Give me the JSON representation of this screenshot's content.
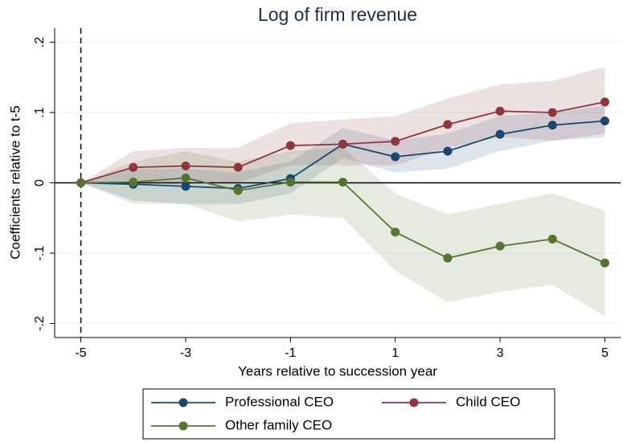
{
  "chart_data": {
    "type": "line",
    "title": "Log of firm revenue",
    "x_label": "Years relative to succession year",
    "y_label": "Coefficients relative to t-5",
    "x": [
      -5,
      -4,
      -3,
      -2,
      -1,
      0,
      1,
      2,
      3,
      4,
      5
    ],
    "xlim": [
      -5.5,
      5.3
    ],
    "xticks": [
      -5,
      -3,
      -1,
      1,
      3,
      5
    ],
    "ylim": [
      -0.22,
      0.22
    ],
    "yticks": [
      {
        "value": 0.2,
        "label": ".2"
      },
      {
        "value": 0.1,
        "label": ".1"
      },
      0,
      {
        "value": -0.1,
        "label": "-.1"
      },
      {
        "value": -0.2,
        "label": "-.2"
      }
    ],
    "grid": true,
    "xline": -5,
    "yline": 0,
    "legend": "bottom",
    "series": [
      {
        "name": "Professional CEO",
        "color": "#1a476f",
        "values": [
          0,
          -0.002,
          -0.005,
          -0.008,
          0.006,
          0.055,
          0.037,
          0.045,
          0.069,
          0.082,
          0.088
        ],
        "upper": [
          0,
          0.02,
          0.02,
          0.015,
          0.03,
          0.078,
          0.06,
          0.07,
          0.095,
          0.1,
          0.11
        ],
        "lower": [
          0,
          -0.025,
          -0.03,
          -0.03,
          -0.015,
          0.035,
          0.015,
          0.02,
          0.045,
          0.06,
          0.065
        ]
      },
      {
        "name": "Child CEO",
        "color": "#90353b",
        "values": [
          0,
          0.022,
          0.024,
          0.022,
          0.053,
          0.055,
          0.059,
          0.083,
          0.102,
          0.1,
          0.115
        ],
        "upper": [
          0,
          0.045,
          0.05,
          0.05,
          0.085,
          0.09,
          0.095,
          0.12,
          0.14,
          0.145,
          0.165
        ],
        "lower": [
          0,
          0.0,
          0.0,
          0.0,
          0.025,
          0.025,
          0.025,
          0.05,
          0.065,
          0.06,
          0.07
        ]
      },
      {
        "name": "Other family CEO",
        "color": "#55752f",
        "values": [
          0,
          0.001,
          0.007,
          -0.011,
          0.001,
          0.001,
          -0.07,
          -0.107,
          -0.09,
          -0.08,
          -0.114
        ],
        "upper": [
          0,
          0.03,
          0.045,
          0.03,
          0.045,
          0.05,
          -0.015,
          -0.045,
          -0.03,
          -0.015,
          -0.04
        ],
        "lower": [
          0,
          -0.03,
          -0.03,
          -0.055,
          -0.045,
          -0.05,
          -0.125,
          -0.17,
          -0.155,
          -0.145,
          -0.19
        ]
      }
    ]
  }
}
